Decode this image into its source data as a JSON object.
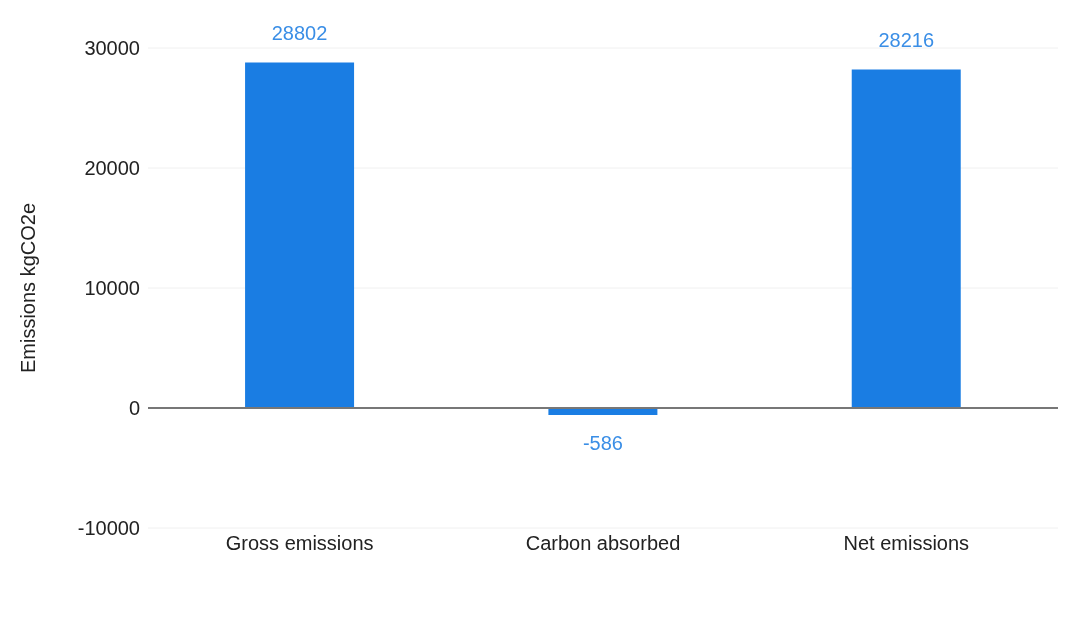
{
  "chart_data": {
    "type": "bar",
    "ylabel": "Emissions kgCO2e",
    "categories": [
      "Gross emissions",
      "Carbon absorbed",
      "Net emissions"
    ],
    "values": [
      28802,
      -586,
      28216
    ],
    "color": "#1a7de3",
    "ylim": [
      -10000,
      30000
    ],
    "yticks": [
      -10000,
      0,
      10000,
      20000,
      30000
    ],
    "data_labels": true,
    "grid": "y"
  }
}
